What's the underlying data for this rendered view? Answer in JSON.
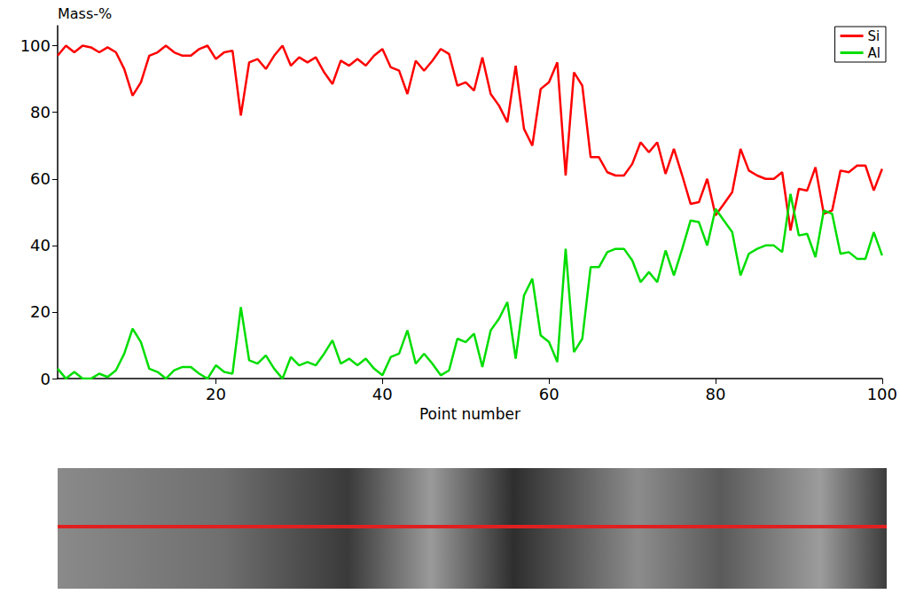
{
  "chart_data": {
    "type": "line",
    "y_label": "Mass-%",
    "x_label": "Point number",
    "x": [
      1,
      2,
      3,
      4,
      5,
      6,
      7,
      8,
      9,
      10,
      11,
      12,
      13,
      14,
      15,
      16,
      17,
      18,
      19,
      20,
      21,
      22,
      23,
      24,
      25,
      26,
      27,
      28,
      29,
      30,
      31,
      32,
      33,
      34,
      35,
      36,
      37,
      38,
      39,
      40,
      41,
      42,
      43,
      44,
      45,
      46,
      47,
      48,
      49,
      50,
      51,
      52,
      53,
      54,
      55,
      56,
      57,
      58,
      59,
      60,
      61,
      62,
      63,
      64,
      65,
      66,
      67,
      68,
      69,
      70,
      71,
      72,
      73,
      74,
      75,
      76,
      77,
      78,
      79,
      80,
      81,
      82,
      83,
      84,
      85,
      86,
      87,
      88,
      89,
      90,
      91,
      92,
      93,
      94,
      95,
      96,
      97,
      98,
      99,
      100
    ],
    "series": [
      {
        "name": "Si",
        "color": "#ff0000",
        "values": [
          97,
          100,
          98,
          100,
          99.5,
          98,
          99.5,
          98,
          93,
          85,
          89,
          97,
          98,
          100,
          98,
          97,
          97,
          99,
          100,
          96,
          98,
          98.5,
          79,
          95,
          96,
          93,
          97,
          100,
          94,
          96.5,
          95,
          96.5,
          92,
          88.5,
          95.5,
          94,
          96,
          94,
          97,
          99,
          93.5,
          92.5,
          85.5,
          95.5,
          92.5,
          95.5,
          99,
          97.5,
          88,
          89,
          86.5,
          96.5,
          85.5,
          82,
          77,
          94,
          75,
          70,
          87,
          89,
          95,
          61,
          92,
          88,
          66.5,
          66.5,
          62,
          61,
          61,
          64.5,
          71,
          68,
          71,
          61.5,
          69,
          61,
          52.5,
          53,
          60,
          49,
          52.5,
          56,
          69,
          62.5,
          61,
          60,
          60,
          62,
          44.5,
          57,
          56.5,
          63.5,
          49.5,
          50.5,
          62.5,
          62,
          64,
          64,
          56.5,
          63
        ]
      },
      {
        "name": "Al",
        "color": "#00dd00",
        "values": [
          3,
          0,
          2,
          0,
          0,
          1.5,
          0.5,
          2.5,
          7.5,
          15,
          11,
          3,
          2,
          0,
          2.5,
          3.5,
          3.5,
          1.5,
          0,
          4,
          2,
          1.5,
          21.5,
          5.5,
          4.5,
          7,
          3,
          0,
          6.5,
          4,
          5,
          4,
          7.5,
          11.5,
          4.5,
          6,
          4,
          6,
          3,
          1,
          6.5,
          7.5,
          14.5,
          4.5,
          7.5,
          4.5,
          1,
          2.5,
          12,
          11,
          13.5,
          3.5,
          14.5,
          18,
          23,
          6,
          25,
          30,
          13,
          11,
          5,
          39,
          8,
          12,
          33.5,
          33.5,
          38,
          39,
          39,
          35.5,
          29,
          32,
          29,
          38.5,
          31,
          39,
          47.5,
          47,
          40,
          51,
          47.5,
          44,
          31,
          37.5,
          39,
          40,
          40,
          38,
          55.5,
          43,
          43.5,
          36.5,
          50.5,
          49.5,
          37.5,
          38,
          36,
          36,
          44,
          37
        ]
      }
    ],
    "xlim": [
      1,
      100
    ],
    "xticks": [
      20,
      40,
      60,
      80,
      100
    ],
    "ylim": [
      0,
      106
    ],
    "yticks": [
      0,
      20,
      40,
      60,
      80,
      100
    ],
    "grid": false,
    "legend": "top-right"
  }
}
